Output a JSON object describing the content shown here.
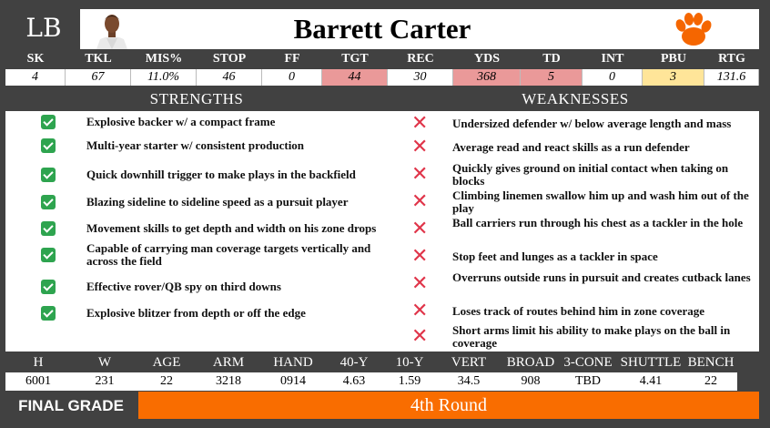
{
  "header": {
    "position": "LB",
    "player_name": "Barrett Carter",
    "team_logo_icon": "clemson-paw-icon",
    "brand_color": "#F56600"
  },
  "stats": {
    "columns": [
      {
        "label": "SK",
        "value": "4"
      },
      {
        "label": "TKL",
        "value": "67"
      },
      {
        "label": "MIS%",
        "value": "11.0%"
      },
      {
        "label": "STOP",
        "value": "46"
      },
      {
        "label": "FF",
        "value": "0"
      },
      {
        "label": "TGT",
        "value": "44",
        "highlight": "#ea9999"
      },
      {
        "label": "REC",
        "value": "30"
      },
      {
        "label": "YDS",
        "value": "368",
        "highlight": "#ea9999"
      },
      {
        "label": "TD",
        "value": "5",
        "highlight": "#ea9999"
      },
      {
        "label": "INT",
        "value": "0"
      },
      {
        "label": "PBU",
        "value": "3",
        "highlight": "#ffe599"
      },
      {
        "label": "RTG",
        "value": "131.6"
      }
    ]
  },
  "strengths_title": "STRENGTHS",
  "weaknesses_title": "WEAKNESSES",
  "strengths": [
    "Explosive backer w/ a compact frame",
    "Multi-year starter w/ consistent production",
    "Quick downhill trigger to make plays in the backfield",
    "Blazing sideline to sideline speed as a pursuit player",
    "Movement skills to get depth and width on his zone drops",
    "Capable of carrying man coverage targets vertically and across the field",
    "Effective rover/QB spy on third downs",
    "Explosive blitzer from depth or off the edge"
  ],
  "weaknesses": [
    "Undersized defender w/ below average length and mass",
    "Average read and react skills as a run defender",
    "Quickly gives ground on initial contact when taking on blocks",
    "Climbing linemen swallow him up and wash him out of the play",
    "Ball carriers run through his chest as a tackler in the hole",
    "Stop feet and lunges as a tackler in space",
    "Overruns outside runs in pursuit and creates cutback lanes",
    "Loses track of routes behind him in zone coverage",
    "Short arms limit his ability to make plays on the ball in coverage"
  ],
  "measurements": [
    {
      "label": "H",
      "value": "6001"
    },
    {
      "label": "W",
      "value": "231"
    },
    {
      "label": "AGE",
      "value": "22"
    },
    {
      "label": "ARM",
      "value": "3218"
    },
    {
      "label": "HAND",
      "value": "0914"
    },
    {
      "label": "40-Y",
      "value": "4.63"
    },
    {
      "label": "10-Y",
      "value": "1.59"
    },
    {
      "label": "VERT",
      "value": "34.5"
    },
    {
      "label": "BROAD",
      "value": "908"
    },
    {
      "label": "3-CONE",
      "value": "TBD"
    },
    {
      "label": "SHUTTLE",
      "value": "4.41"
    },
    {
      "label": "BENCH",
      "value": "22"
    }
  ],
  "final_grade": {
    "label": "FINAL GRADE",
    "value": "4th Round"
  }
}
